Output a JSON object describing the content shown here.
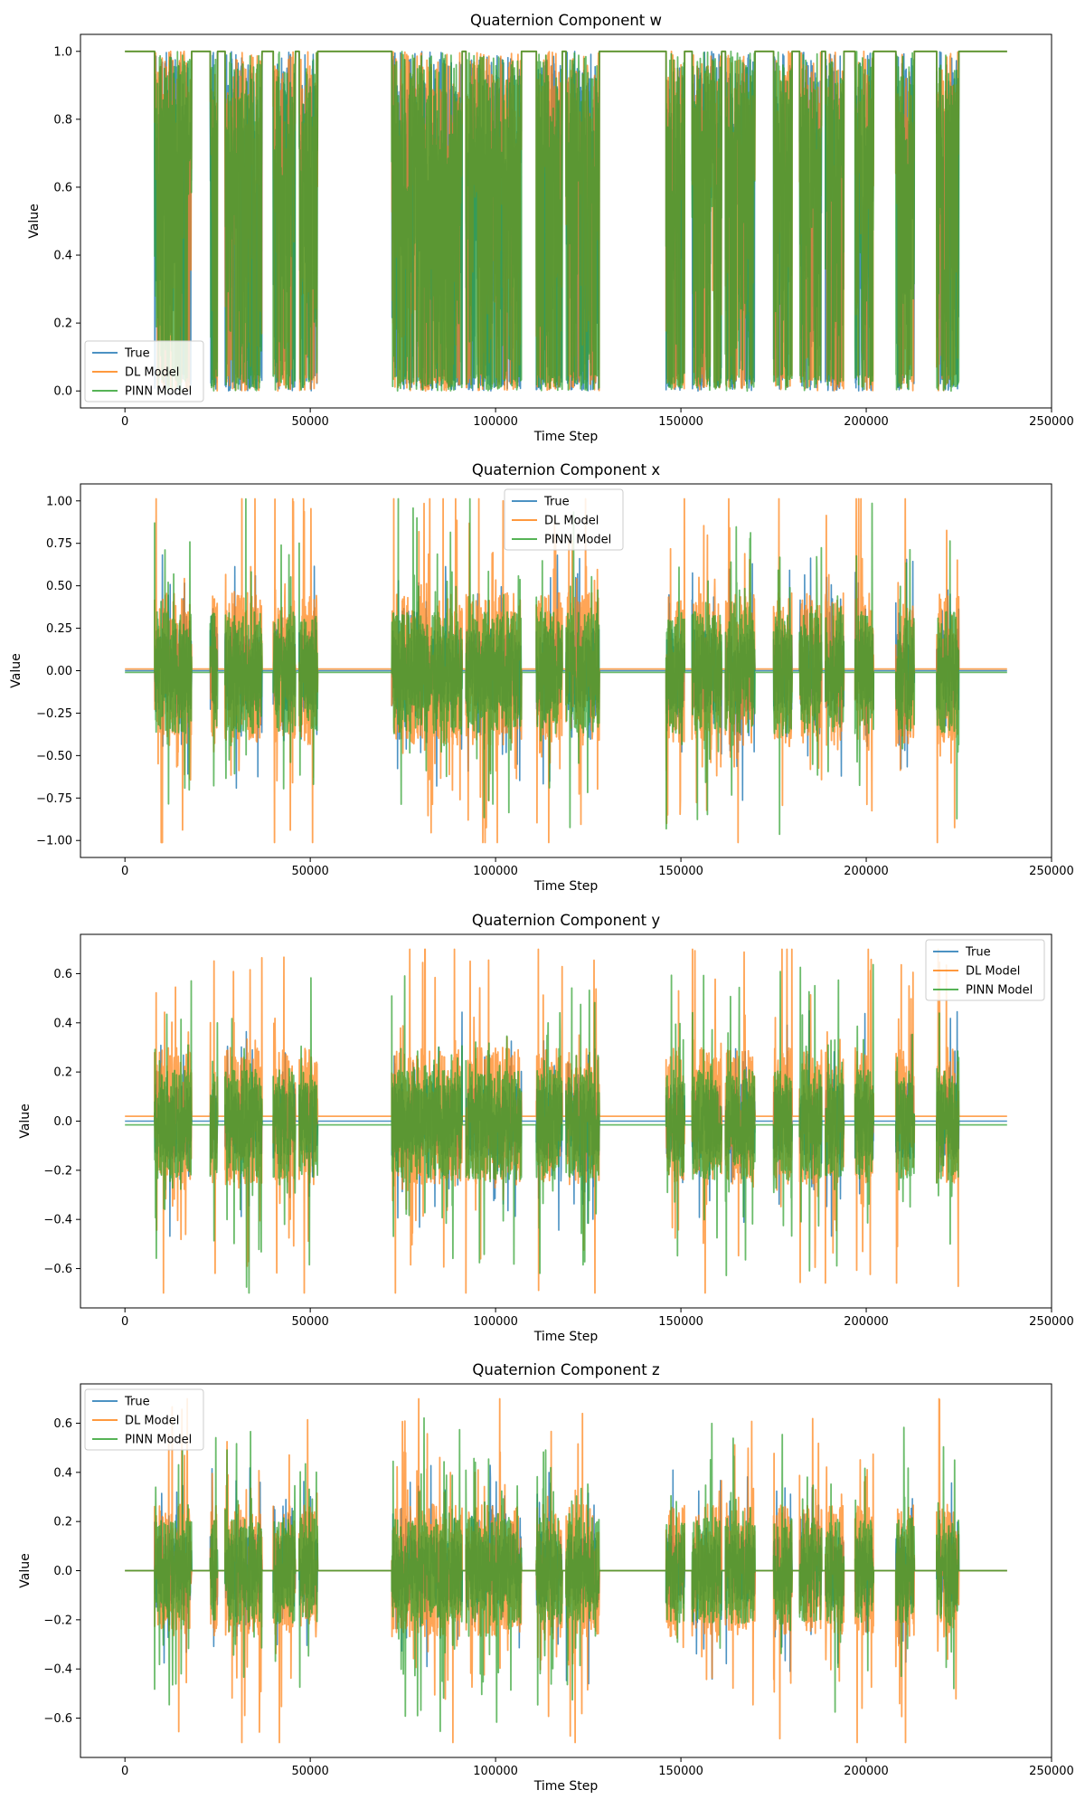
{
  "chart_data": [
    {
      "type": "line",
      "title": "Quaternion Component w",
      "xlabel": "Time Step",
      "ylabel": "Value",
      "xlim": [
        -12000,
        250000
      ],
      "ylim": [
        -0.05,
        1.05
      ],
      "xticks": [
        0,
        50000,
        100000,
        150000,
        200000,
        250000
      ],
      "xtick_labels": [
        "0",
        "50000",
        "100000",
        "150000",
        "200000",
        "250000"
      ],
      "yticks": [
        0.0,
        0.2,
        0.4,
        0.6,
        0.8,
        1.0
      ],
      "ytick_labels": [
        "0.0",
        "0.2",
        "0.4",
        "0.6",
        "0.8",
        "1.0"
      ],
      "legend_position": "lower-left",
      "baseline": {
        "True": 1.0,
        "DL Model": 1.0,
        "PINN Model": 1.0
      },
      "active_segments": [
        [
          8000,
          18000
        ],
        [
          23000,
          25000
        ],
        [
          27000,
          37000
        ],
        [
          40000,
          46000
        ],
        [
          47000,
          52000
        ],
        [
          72000,
          91000
        ],
        [
          92000,
          107000
        ],
        [
          111000,
          118000
        ],
        [
          119000,
          128000
        ],
        [
          146000,
          151000
        ],
        [
          153000,
          161000
        ],
        [
          162000,
          170000
        ],
        [
          175000,
          180000
        ],
        [
          182000,
          188000
        ],
        [
          189000,
          194000
        ],
        [
          197000,
          202000
        ],
        [
          208000,
          213000
        ],
        [
          219000,
          225000
        ]
      ],
      "series": [
        {
          "name": "True",
          "color": "#1f77b4"
        },
        {
          "name": "DL Model",
          "color": "#ff7f0e"
        },
        {
          "name": "PINN Model",
          "color": "#2ca02c"
        }
      ]
    },
    {
      "type": "line",
      "title": "Quaternion Component x",
      "xlabel": "Time Step",
      "ylabel": "Value",
      "xlim": [
        -12000,
        250000
      ],
      "ylim": [
        -1.1,
        1.1
      ],
      "xticks": [
        0,
        50000,
        100000,
        150000,
        200000,
        250000
      ],
      "xtick_labels": [
        "0",
        "50000",
        "100000",
        "150000",
        "200000",
        "250000"
      ],
      "yticks": [
        -1.0,
        -0.75,
        -0.5,
        -0.25,
        0.0,
        0.25,
        0.5,
        0.75,
        1.0
      ],
      "ytick_labels": [
        "−1.00",
        "−0.75",
        "−0.50",
        "−0.25",
        "0.00",
        "0.25",
        "0.50",
        "0.75",
        "1.00"
      ],
      "legend_position": "upper-center",
      "baseline": {
        "True": 0.0,
        "DL Model": 0.01,
        "PINN Model": -0.01
      },
      "active_segments": [
        [
          8000,
          18000
        ],
        [
          23000,
          25000
        ],
        [
          27000,
          37000
        ],
        [
          40000,
          46000
        ],
        [
          47000,
          52000
        ],
        [
          72000,
          91000
        ],
        [
          92000,
          107000
        ],
        [
          111000,
          118000
        ],
        [
          119000,
          128000
        ],
        [
          146000,
          151000
        ],
        [
          153000,
          161000
        ],
        [
          162000,
          170000
        ],
        [
          175000,
          180000
        ],
        [
          182000,
          188000
        ],
        [
          189000,
          194000
        ],
        [
          197000,
          202000
        ],
        [
          208000,
          213000
        ],
        [
          219000,
          225000
        ]
      ],
      "series": [
        {
          "name": "True",
          "color": "#1f77b4"
        },
        {
          "name": "DL Model",
          "color": "#ff7f0e"
        },
        {
          "name": "PINN Model",
          "color": "#2ca02c"
        }
      ]
    },
    {
      "type": "line",
      "title": "Quaternion Component y",
      "xlabel": "Time Step",
      "ylabel": "Value",
      "xlim": [
        -12000,
        250000
      ],
      "ylim": [
        -0.76,
        0.76
      ],
      "xticks": [
        0,
        50000,
        100000,
        150000,
        200000,
        250000
      ],
      "xtick_labels": [
        "0",
        "50000",
        "100000",
        "150000",
        "200000",
        "250000"
      ],
      "yticks": [
        -0.6,
        -0.4,
        -0.2,
        0.0,
        0.2,
        0.4,
        0.6
      ],
      "ytick_labels": [
        "−0.6",
        "−0.4",
        "−0.2",
        "0.0",
        "0.2",
        "0.4",
        "0.6"
      ],
      "legend_position": "upper-right",
      "baseline": {
        "True": 0.0,
        "DL Model": 0.02,
        "PINN Model": -0.015
      },
      "active_segments": [
        [
          8000,
          18000
        ],
        [
          23000,
          25000
        ],
        [
          27000,
          37000
        ],
        [
          40000,
          46000
        ],
        [
          47000,
          52000
        ],
        [
          72000,
          91000
        ],
        [
          92000,
          107000
        ],
        [
          111000,
          118000
        ],
        [
          119000,
          128000
        ],
        [
          146000,
          151000
        ],
        [
          153000,
          161000
        ],
        [
          162000,
          170000
        ],
        [
          175000,
          180000
        ],
        [
          182000,
          188000
        ],
        [
          189000,
          194000
        ],
        [
          197000,
          202000
        ],
        [
          208000,
          213000
        ],
        [
          219000,
          225000
        ]
      ],
      "series": [
        {
          "name": "True",
          "color": "#1f77b4"
        },
        {
          "name": "DL Model",
          "color": "#ff7f0e"
        },
        {
          "name": "PINN Model",
          "color": "#2ca02c"
        }
      ]
    },
    {
      "type": "line",
      "title": "Quaternion Component z",
      "xlabel": "Time Step",
      "ylabel": "Value",
      "xlim": [
        -12000,
        250000
      ],
      "ylim": [
        -0.76,
        0.76
      ],
      "xticks": [
        0,
        50000,
        100000,
        150000,
        200000,
        250000
      ],
      "xtick_labels": [
        "0",
        "50000",
        "100000",
        "150000",
        "200000",
        "250000"
      ],
      "yticks": [
        -0.6,
        -0.4,
        -0.2,
        0.0,
        0.2,
        0.4,
        0.6
      ],
      "ytick_labels": [
        "−0.6",
        "−0.4",
        "−0.2",
        "0.0",
        "0.2",
        "0.4",
        "0.6"
      ],
      "legend_position": "upper-left",
      "baseline": {
        "True": 0.0,
        "DL Model": 0.0,
        "PINN Model": 0.0
      },
      "active_segments": [
        [
          8000,
          18000
        ],
        [
          23000,
          25000
        ],
        [
          27000,
          37000
        ],
        [
          40000,
          46000
        ],
        [
          47000,
          52000
        ],
        [
          72000,
          91000
        ],
        [
          92000,
          107000
        ],
        [
          111000,
          118000
        ],
        [
          119000,
          128000
        ],
        [
          146000,
          151000
        ],
        [
          153000,
          161000
        ],
        [
          162000,
          170000
        ],
        [
          175000,
          180000
        ],
        [
          182000,
          188000
        ],
        [
          189000,
          194000
        ],
        [
          197000,
          202000
        ],
        [
          208000,
          213000
        ],
        [
          219000,
          225000
        ]
      ],
      "series": [
        {
          "name": "True",
          "color": "#1f77b4"
        },
        {
          "name": "DL Model",
          "color": "#ff7f0e"
        },
        {
          "name": "PINN Model",
          "color": "#2ca02c"
        }
      ]
    }
  ]
}
